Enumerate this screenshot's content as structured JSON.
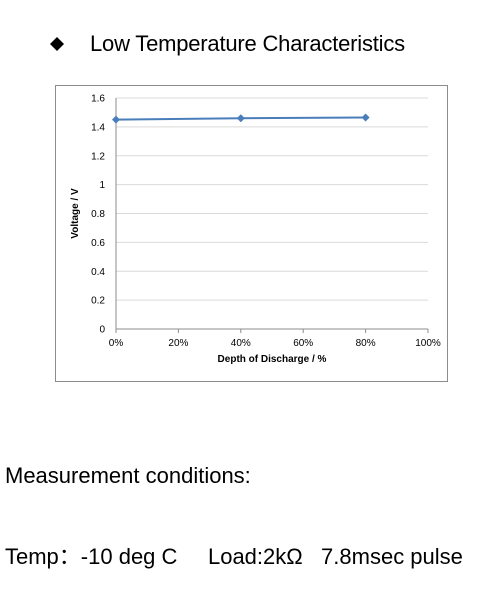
{
  "heading": {
    "text": "Low Temperature Characteristics",
    "bullet_icon": "diamond-bullet-icon"
  },
  "conditions": {
    "title": "Measurement conditions:",
    "line": "Temp：-10 deg C     Load:2kΩ   7.8msec pulse"
  },
  "colors": {
    "series": "#4a7ebb",
    "grid": "#d9d9d9",
    "frame": "#8c8c8c"
  },
  "chart_data": {
    "type": "line",
    "title": "",
    "xlabel": "Depth of Discharge / %",
    "ylabel": "Voltage / V",
    "xlim": [
      0,
      100
    ],
    "ylim": [
      0,
      1.6
    ],
    "x_ticks": [
      "0%",
      "20%",
      "40%",
      "60%",
      "80%",
      "100%"
    ],
    "x_tick_values": [
      0,
      20,
      40,
      60,
      80,
      100
    ],
    "y_ticks": [
      "0",
      "0.2",
      "0.4",
      "0.6",
      "0.8",
      "1",
      "1.2",
      "1.4",
      "1.6"
    ],
    "y_tick_values": [
      0,
      0.2,
      0.4,
      0.6,
      0.8,
      1.0,
      1.2,
      1.4,
      1.6
    ],
    "grid": "horizontal",
    "legend": "none",
    "series": [
      {
        "x": [
          0,
          40,
          80
        ],
        "values": [
          1.45,
          1.46,
          1.465
        ],
        "marker": "diamond"
      }
    ]
  }
}
